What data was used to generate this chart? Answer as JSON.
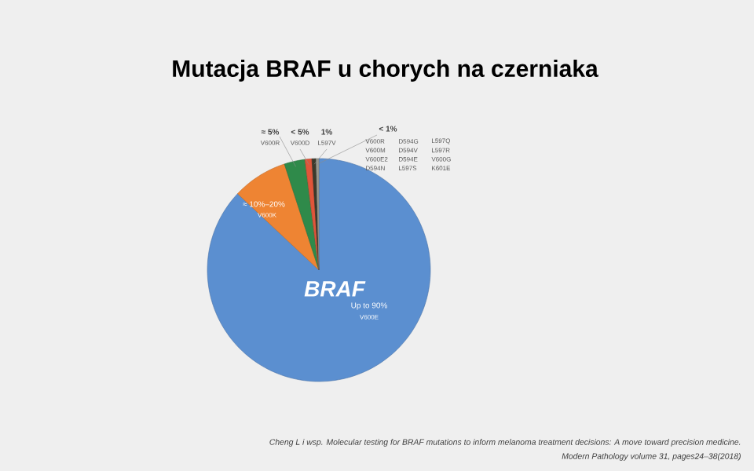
{
  "chart_data": {
    "type": "pie",
    "title": "Mutacja BRAF u chorych na czerniaka",
    "categories": [
      "Up to 90%",
      "≈ 10%–20%",
      "≈ 5%",
      "< 5%",
      "1%",
      "< 1%"
    ],
    "values": [
      87,
      8,
      3,
      1,
      0.6,
      0.4
    ],
    "colors": [
      "#5b8fd0",
      "#ee8433",
      "#2f8a4a",
      "#e0553a",
      "#3b3a2c",
      "#9a9a90"
    ],
    "annotations": [
      "V600E",
      "V600K",
      "V600R",
      "V600D",
      "L597V",
      "V600R",
      "D594G",
      "L597Q",
      "V600M",
      "D594V",
      "L597R",
      "V600E2",
      "D594E",
      "V600G",
      "D594N",
      "L597S",
      "K601E",
      "BRAF",
      "Cheng L i wsp. Molecular testing for BRAF mutations to inform melanoma treatment decisions: A move toward precision medicine.",
      "Modern Pathology volume 31, pages24–38(2018)"
    ]
  }
}
